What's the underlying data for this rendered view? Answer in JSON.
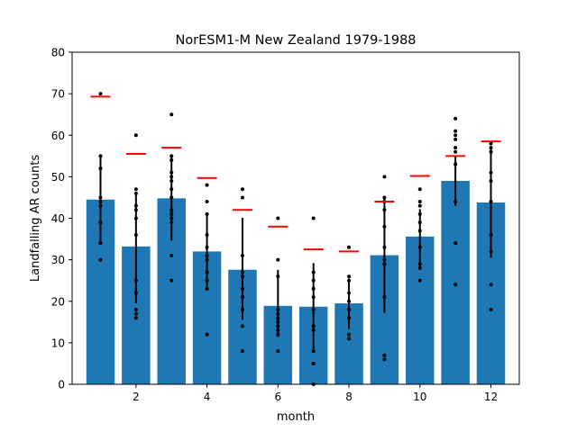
{
  "chart_data": {
    "type": "bar",
    "title": "NorESM1-M New Zealand 1979-1988",
    "xlabel": "month",
    "ylabel": "Landfalling AR counts",
    "xlim": [
      0.2,
      12.8
    ],
    "ylim": [
      0,
      80
    ],
    "xticks": [
      2,
      4,
      6,
      8,
      10,
      12
    ],
    "yticks": [
      0,
      10,
      20,
      30,
      40,
      50,
      60,
      70,
      80
    ],
    "grid": false,
    "bar_color": "#1f77b4",
    "marker_color": "#ff0000",
    "point_color": "#000000",
    "errorbar_color": "#000000",
    "series": [
      {
        "kind": "bar",
        "x": [
          1,
          2,
          3,
          4,
          5,
          6,
          7,
          8,
          9,
          10,
          11,
          12
        ],
        "values": [
          44.5,
          33.2,
          44.8,
          32.0,
          27.6,
          18.9,
          18.7,
          19.5,
          31.1,
          35.6,
          49.0,
          43.8
        ],
        "error_low": [
          34.0,
          19.5,
          34.6,
          23.5,
          15.5,
          11.4,
          8.5,
          13.3,
          17.2,
          28.0,
          43.0,
          30.5
        ],
        "error_high": [
          55.3,
          46.4,
          55.3,
          41.2,
          40.1,
          27.6,
          29.2,
          25.5,
          45.3,
          42.2,
          55.0,
          57.0
        ]
      },
      {
        "kind": "marker",
        "x": [
          1,
          2,
          3,
          4,
          5,
          6,
          7,
          8,
          9,
          10,
          11,
          12
        ],
        "values": [
          69.3,
          55.5,
          57.0,
          49.7,
          42.0,
          38.0,
          32.5,
          32.0,
          44.0,
          50.2,
          55.0,
          58.5
        ]
      },
      {
        "kind": "points",
        "points": [
          [
            1,
            [
              70,
              55,
              52,
              52,
              45,
              44,
              43,
              39,
              39,
              34,
              34,
              30
            ]
          ],
          [
            2,
            [
              60,
              47,
              46,
              43,
              42,
              40,
              36,
              25,
              22,
              18,
              17,
              16
            ]
          ],
          [
            3,
            [
              65,
              55,
              54,
              51,
              50,
              49,
              47,
              45,
              42,
              41,
              40,
              39,
              31,
              25
            ]
          ],
          [
            4,
            [
              48,
              44,
              41,
              36,
              33,
              31,
              30,
              27,
              25,
              23,
              12
            ]
          ],
          [
            5,
            [
              47,
              45,
              31,
              27,
              26,
              23,
              21,
              18,
              14,
              8
            ]
          ],
          [
            6,
            [
              40,
              30,
              26,
              18,
              17,
              16,
              15,
              14,
              13,
              12,
              8
            ]
          ],
          [
            7,
            [
              40,
              27,
              25,
              23,
              21,
              18,
              14,
              13,
              8,
              5,
              0
            ]
          ],
          [
            8,
            [
              33,
              26,
              25,
              22,
              20,
              18,
              16,
              12,
              11
            ]
          ],
          [
            9,
            [
              50,
              45,
              44,
              42,
              38,
              33,
              30,
              29,
              21,
              7,
              6
            ]
          ],
          [
            10,
            [
              47,
              44,
              43,
              41,
              39,
              37,
              33,
              29,
              28,
              25
            ]
          ],
          [
            11,
            [
              64,
              61,
              60,
              59,
              57,
              56,
              53,
              44,
              34,
              24
            ]
          ],
          [
            12,
            [
              58,
              57,
              56,
              51,
              49,
              44,
              36,
              32,
              24,
              18
            ]
          ]
        ]
      }
    ]
  }
}
